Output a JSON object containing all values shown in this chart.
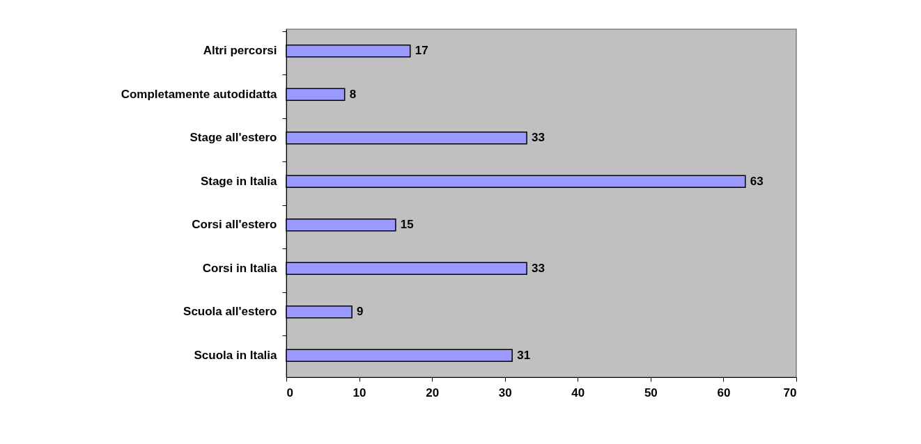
{
  "chart_data": {
    "type": "bar",
    "orientation": "horizontal",
    "categories": [
      "Altri percorsi",
      "Completamente autodidatta",
      "Stage all'estero",
      "Stage in Italia",
      "Corsi all'estero",
      "Corsi in Italia",
      "Scuola all'estero",
      "Scuola in Italia"
    ],
    "values": [
      17,
      8,
      33,
      63,
      15,
      33,
      9,
      31
    ],
    "color": "#9999ff",
    "xlim": [
      0,
      70
    ],
    "xticks": [
      0,
      10,
      20,
      30,
      40,
      50,
      60,
      70
    ],
    "grid": false,
    "data_labels": true
  }
}
